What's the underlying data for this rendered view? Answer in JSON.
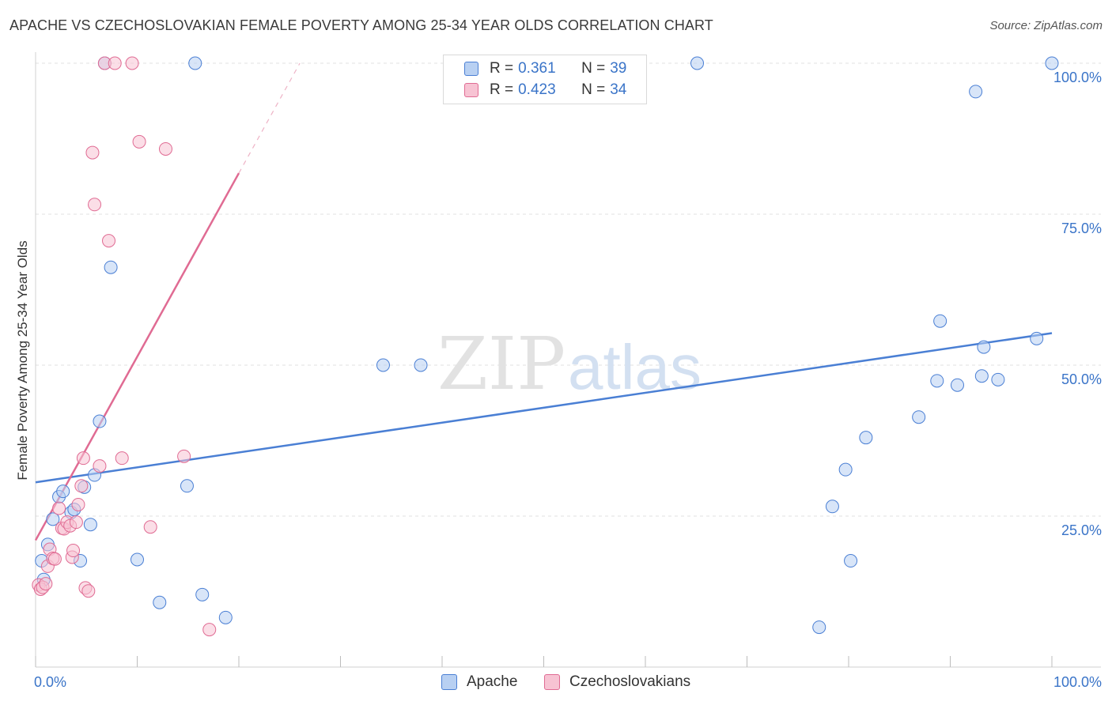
{
  "title": "APACHE VS CZECHOSLOVAKIAN FEMALE POVERTY AMONG 25-34 YEAR OLDS CORRELATION CHART",
  "source": "Source: ZipAtlas.com",
  "watermark": {
    "zip": "ZIP",
    "atlas": "atlas"
  },
  "legend": {
    "rows": [
      {
        "r_label": "R = ",
        "r_value": "0.361",
        "n_label": "N = ",
        "n_value": "39"
      },
      {
        "r_label": "R = ",
        "r_value": "0.423",
        "n_label": "N = ",
        "n_value": "34"
      }
    ]
  },
  "chart_data": {
    "type": "scatter",
    "title": "APACHE VS CZECHOSLOVAKIAN FEMALE POVERTY AMONG 25-34 YEAR OLDS CORRELATION CHART",
    "xlabel": "",
    "ylabel": "Female Poverty Among 25-34 Year Olds",
    "xlim": [
      0,
      100
    ],
    "ylim": [
      0,
      100
    ],
    "x_tick_labels": [
      "0.0%",
      "100.0%"
    ],
    "y_tick_labels": [
      "25.0%",
      "50.0%",
      "75.0%",
      "100.0%"
    ],
    "y_ticks": [
      25,
      50,
      75,
      100
    ],
    "grid": true,
    "legend_placement": "top-center",
    "series": [
      {
        "name": "Apache",
        "color": "#4a7fd4",
        "fill": "#b8d0f2",
        "points": [
          [
            0.6,
            17.6
          ],
          [
            0.8,
            14.5
          ],
          [
            1.2,
            20.3
          ],
          [
            1.7,
            24.5
          ],
          [
            2.3,
            28.2
          ],
          [
            2.7,
            29.1
          ],
          [
            3.5,
            25.6
          ],
          [
            3.8,
            26.1
          ],
          [
            4.4,
            17.6
          ],
          [
            4.8,
            29.8
          ],
          [
            5.4,
            23.6
          ],
          [
            5.8,
            31.8
          ],
          [
            6.3,
            40.7
          ],
          [
            6.8,
            100
          ],
          [
            7.4,
            66.2
          ],
          [
            10.0,
            17.8
          ],
          [
            12.2,
            10.7
          ],
          [
            14.9,
            30.0
          ],
          [
            15.7,
            100
          ],
          [
            16.4,
            12.0
          ],
          [
            18.7,
            8.2
          ],
          [
            34.2,
            50.0
          ],
          [
            37.9,
            50.0
          ],
          [
            65.1,
            100
          ],
          [
            77.1,
            6.6
          ],
          [
            78.4,
            26.6
          ],
          [
            79.7,
            32.7
          ],
          [
            80.2,
            17.6
          ],
          [
            81.7,
            38.0
          ],
          [
            86.9,
            41.4
          ],
          [
            88.7,
            47.4
          ],
          [
            89.0,
            57.3
          ],
          [
            90.7,
            46.7
          ],
          [
            92.5,
            95.3
          ],
          [
            93.1,
            48.2
          ],
          [
            93.3,
            53.0
          ],
          [
            94.7,
            47.6
          ],
          [
            98.5,
            54.4
          ],
          [
            100,
            100
          ]
        ],
        "trend": {
          "x": [
            0,
            100
          ],
          "y": [
            30.6,
            55.3
          ]
        }
      },
      {
        "name": "Czechoslovakians",
        "color": "#e06b93",
        "fill": "#f7c3d3",
        "points": [
          [
            0.3,
            13.6
          ],
          [
            0.5,
            12.9
          ],
          [
            0.7,
            13.2
          ],
          [
            1.0,
            13.8
          ],
          [
            1.2,
            16.7
          ],
          [
            1.4,
            19.5
          ],
          [
            1.7,
            18.0
          ],
          [
            1.9,
            17.9
          ],
          [
            2.3,
            26.3
          ],
          [
            2.6,
            23.0
          ],
          [
            2.8,
            22.9
          ],
          [
            3.1,
            24.0
          ],
          [
            3.4,
            23.4
          ],
          [
            3.6,
            18.2
          ],
          [
            3.7,
            19.3
          ],
          [
            4.0,
            24.0
          ],
          [
            4.2,
            26.9
          ],
          [
            4.5,
            30.0
          ],
          [
            4.7,
            34.6
          ],
          [
            4.9,
            13.1
          ],
          [
            5.2,
            12.6
          ],
          [
            5.6,
            85.2
          ],
          [
            5.8,
            76.6
          ],
          [
            6.3,
            33.3
          ],
          [
            6.8,
            100
          ],
          [
            7.2,
            70.6
          ],
          [
            7.8,
            100
          ],
          [
            8.5,
            34.6
          ],
          [
            9.5,
            100
          ],
          [
            10.2,
            87.0
          ],
          [
            11.3,
            23.2
          ],
          [
            12.8,
            85.8
          ],
          [
            14.6,
            34.9
          ],
          [
            17.1,
            6.2
          ]
        ],
        "trend": {
          "x": [
            0,
            20
          ],
          "y": [
            21.0,
            81.8
          ]
        },
        "trend_dashed": {
          "x": [
            20,
            26
          ],
          "y": [
            81.8,
            100
          ]
        }
      }
    ]
  }
}
